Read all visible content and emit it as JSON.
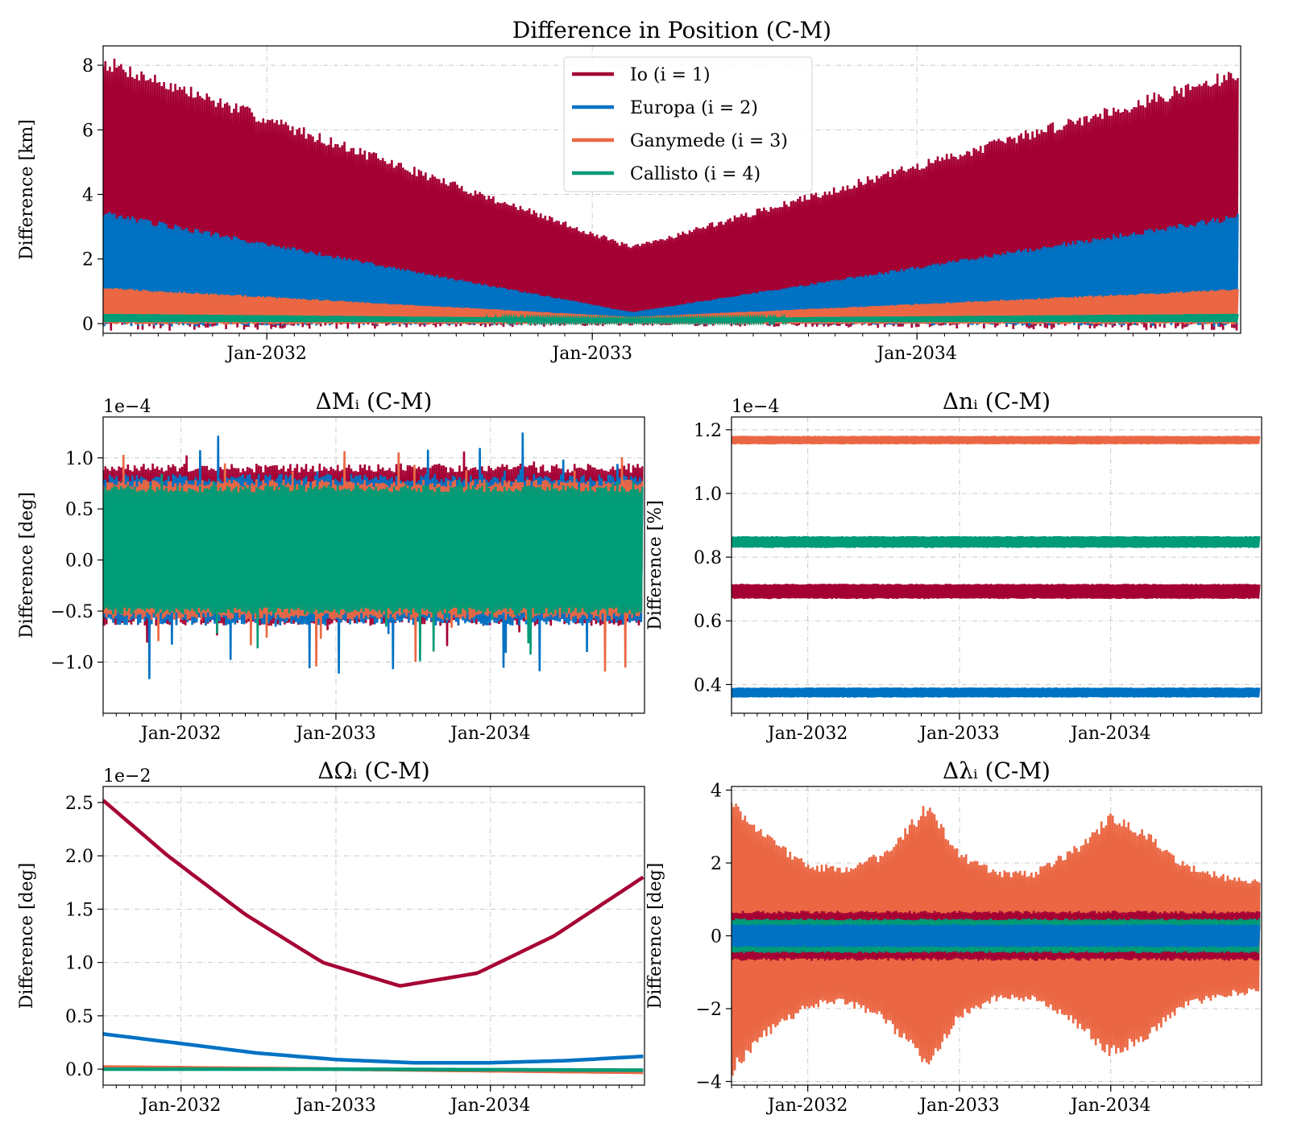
{
  "colors": {
    "io": "#a50034",
    "europa": "#0072c3",
    "ganymede": "#eb6743",
    "callisto": "#009b77"
  },
  "legend": [
    {
      "key": "io",
      "label": "Io (i = 1)"
    },
    {
      "key": "europa",
      "label": "Europa (i = 2)"
    },
    {
      "key": "ganymede",
      "label": "Ganymede (i = 3)"
    },
    {
      "key": "callisto",
      "label": "Callisto (i = 4)"
    }
  ],
  "chart_data": [
    {
      "id": "position",
      "type": "area",
      "title": "Difference in Position (C-M)",
      "ylabel": "Difference [km]",
      "offset_text": "",
      "xlim": [
        "2031-07-01",
        "2034-12-31"
      ],
      "ylim": [
        -0.3,
        8.6
      ],
      "x_ticks": [
        "2032-01-01",
        "2033-01-01",
        "2034-01-01"
      ],
      "x_tick_labels": [
        "Jan-2032",
        "Jan-2033",
        "Jan-2034"
      ],
      "y_ticks": [
        0,
        2,
        4,
        6,
        8
      ],
      "y_tick_labels": [
        "0",
        "2",
        "4",
        "6",
        "8"
      ],
      "grid": true,
      "legend_position": "top-center",
      "series": [
        {
          "key": "io",
          "x": [
            "2031-07-01",
            "2033-02-15",
            "2034-12-28"
          ],
          "upper": [
            8.1,
            2.35,
            7.7
          ],
          "lower": [
            0.0,
            0.0,
            0.0
          ]
        },
        {
          "key": "europa",
          "x": [
            "2031-07-01",
            "2033-02-15",
            "2034-12-28"
          ],
          "upper": [
            3.4,
            0.35,
            3.3
          ],
          "lower": [
            0.0,
            0.0,
            0.0
          ]
        },
        {
          "key": "ganymede",
          "x": [
            "2031-07-01",
            "2033-02-15",
            "2034-12-28"
          ],
          "upper": [
            1.1,
            0.2,
            1.05
          ],
          "lower": [
            0.0,
            0.0,
            0.0
          ]
        },
        {
          "key": "callisto",
          "x": [
            "2031-07-01",
            "2033-02-15",
            "2034-12-28"
          ],
          "upper": [
            0.3,
            0.15,
            0.3
          ],
          "lower": [
            0.05,
            0.05,
            0.05
          ]
        }
      ]
    },
    {
      "id": "mean-anomaly",
      "type": "line",
      "title": "ΔMᵢ (C-M)",
      "ylabel": "Difference [deg]",
      "offset_text": "1e−4",
      "xlim": [
        "2031-07-01",
        "2034-12-31"
      ],
      "ylim": [
        -1.5,
        1.4
      ],
      "x_ticks": [
        "2032-01-01",
        "2033-01-01",
        "2034-01-01"
      ],
      "x_tick_labels": [
        "Jan-2032",
        "Jan-2033",
        "Jan-2034"
      ],
      "y_ticks": [
        -1.0,
        -0.5,
        0.0,
        0.5,
        1.0
      ],
      "y_tick_labels": [
        "−1.0",
        "−0.5",
        "0.0",
        "0.5",
        "1.0"
      ],
      "grid": true,
      "series": [
        {
          "key": "io",
          "x": [
            "2031-07-01",
            "2034-12-28"
          ],
          "upper": [
            0.9,
            0.9
          ],
          "lower": [
            -0.6,
            -0.6
          ],
          "spike_max": 1.1,
          "spike_min": -0.9
        },
        {
          "key": "europa",
          "x": [
            "2031-07-01",
            "2034-12-28"
          ],
          "upper": [
            0.8,
            0.8
          ],
          "lower": [
            -0.6,
            -0.6
          ],
          "spike_max": 1.25,
          "spike_min": -1.35
        },
        {
          "key": "ganymede",
          "x": [
            "2031-07-01",
            "2034-12-28"
          ],
          "upper": [
            0.75,
            0.75
          ],
          "lower": [
            -0.55,
            -0.55
          ],
          "spike_max": 1.1,
          "spike_min": -1.1
        },
        {
          "key": "callisto",
          "x": [
            "2031-07-01",
            "2034-12-28"
          ],
          "upper": [
            0.7,
            0.7
          ],
          "lower": [
            -0.5,
            -0.5
          ],
          "spike_max": 0.85,
          "spike_min": -1.1
        }
      ]
    },
    {
      "id": "mean-motion",
      "type": "line",
      "title": "Δnᵢ (C-M)",
      "ylabel": "Difference [%]",
      "offset_text": "1e−4",
      "xlim": [
        "2031-07-01",
        "2034-12-31"
      ],
      "ylim": [
        0.31,
        1.24
      ],
      "x_ticks": [
        "2032-01-01",
        "2033-01-01",
        "2034-01-01"
      ],
      "x_tick_labels": [
        "Jan-2032",
        "Jan-2033",
        "Jan-2034"
      ],
      "y_ticks": [
        0.4,
        0.6,
        0.8,
        1.0,
        1.2
      ],
      "y_tick_labels": [
        "0.4",
        "0.6",
        "0.8",
        "1.0",
        "1.2"
      ],
      "grid": true,
      "series": [
        {
          "key": "ganymede",
          "x": [
            "2031-07-01",
            "2034-12-28"
          ],
          "upper": [
            1.18,
            1.18
          ],
          "lower": [
            1.155,
            1.155
          ]
        },
        {
          "key": "callisto",
          "x": [
            "2031-07-01",
            "2034-12-28"
          ],
          "upper": [
            0.865,
            0.865
          ],
          "lower": [
            0.83,
            0.83
          ]
        },
        {
          "key": "io",
          "x": [
            "2031-07-01",
            "2034-12-28"
          ],
          "upper": [
            0.715,
            0.715
          ],
          "lower": [
            0.67,
            0.67
          ]
        },
        {
          "key": "europa",
          "x": [
            "2031-07-01",
            "2034-12-28"
          ],
          "upper": [
            0.39,
            0.39
          ],
          "lower": [
            0.36,
            0.36
          ]
        }
      ]
    },
    {
      "id": "node",
      "type": "line",
      "title": "ΔΩᵢ (C-M)",
      "ylabel": "Difference [deg]",
      "offset_text": "1e−2",
      "xlim": [
        "2031-07-01",
        "2034-12-31"
      ],
      "ylim": [
        -0.15,
        2.65
      ],
      "x_ticks": [
        "2032-01-01",
        "2033-01-01",
        "2034-01-01"
      ],
      "x_tick_labels": [
        "Jan-2032",
        "Jan-2033",
        "Jan-2034"
      ],
      "y_ticks": [
        0.0,
        0.5,
        1.0,
        1.5,
        2.0,
        2.5
      ],
      "y_tick_labels": [
        "0.0",
        "0.5",
        "1.0",
        "1.5",
        "2.0",
        "2.5"
      ],
      "grid": true,
      "series": [
        {
          "key": "io",
          "x": [
            "2031-07-01",
            "2031-12-01",
            "2032-06-01",
            "2032-12-01",
            "2033-06-01",
            "2033-12-01",
            "2034-06-01",
            "2034-12-28"
          ],
          "y": [
            2.52,
            2.0,
            1.45,
            1.0,
            0.78,
            0.9,
            1.25,
            1.8
          ]
        },
        {
          "key": "europa",
          "x": [
            "2031-07-01",
            "2032-01-01",
            "2032-07-01",
            "2033-01-01",
            "2033-07-01",
            "2034-01-01",
            "2034-07-01",
            "2034-12-28"
          ],
          "y": [
            0.33,
            0.24,
            0.15,
            0.09,
            0.06,
            0.06,
            0.08,
            0.12
          ]
        },
        {
          "key": "ganymede",
          "x": [
            "2031-07-01",
            "2033-01-01",
            "2034-12-28"
          ],
          "y": [
            0.02,
            0.0,
            -0.03
          ]
        },
        {
          "key": "callisto",
          "x": [
            "2031-07-01",
            "2033-01-01",
            "2034-12-28"
          ],
          "y": [
            0.0,
            0.0,
            -0.01
          ]
        }
      ]
    },
    {
      "id": "mean-longitude",
      "type": "area",
      "title": "Δλᵢ (C-M)",
      "ylabel": "Difference [deg]",
      "offset_text": "",
      "xlim": [
        "2031-07-01",
        "2034-12-31"
      ],
      "ylim": [
        -4.1,
        4.1
      ],
      "x_ticks": [
        "2032-01-01",
        "2033-01-01",
        "2034-01-01"
      ],
      "x_tick_labels": [
        "Jan-2032",
        "Jan-2033",
        "Jan-2034"
      ],
      "y_ticks": [
        -4,
        -2,
        0,
        2,
        4
      ],
      "y_tick_labels": [
        "−4",
        "−2",
        "0",
        "2",
        "4"
      ],
      "grid": true,
      "series": [
        {
          "key": "ganymede",
          "x": [
            "2031-07-01",
            "2031-10-01",
            "2032-01-01",
            "2032-04-01",
            "2032-07-01",
            "2032-10-15",
            "2033-01-01",
            "2033-04-01",
            "2033-07-01",
            "2033-10-01",
            "2034-01-01",
            "2034-04-01",
            "2034-07-01",
            "2034-10-01",
            "2034-12-28"
          ],
          "upper": [
            3.7,
            2.6,
            1.9,
            1.8,
            2.2,
            3.5,
            2.2,
            1.7,
            1.7,
            2.3,
            3.2,
            2.7,
            1.9,
            1.6,
            1.5
          ],
          "lower": [
            -3.7,
            -2.6,
            -1.9,
            -1.8,
            -2.2,
            -3.5,
            -2.2,
            -1.7,
            -1.7,
            -2.3,
            -3.2,
            -2.7,
            -1.9,
            -1.6,
            -1.5
          ]
        },
        {
          "key": "io",
          "x": [
            "2031-07-01",
            "2034-12-28"
          ],
          "upper": [
            0.65,
            0.65
          ],
          "lower": [
            -0.65,
            -0.65
          ]
        },
        {
          "key": "callisto",
          "x": [
            "2031-07-01",
            "2034-12-28"
          ],
          "upper": [
            0.45,
            0.45
          ],
          "lower": [
            -0.45,
            -0.45
          ]
        },
        {
          "key": "europa",
          "x": [
            "2031-07-01",
            "2034-12-28"
          ],
          "upper": [
            0.3,
            0.3
          ],
          "lower": [
            -0.3,
            -0.3
          ]
        }
      ]
    }
  ]
}
